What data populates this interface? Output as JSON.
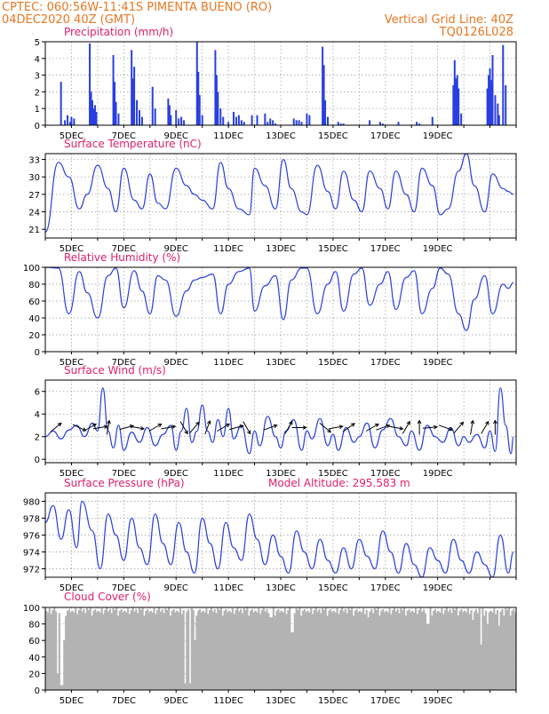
{
  "header": {
    "left_line1": "CPTEC:   060:56W-11:41S   PIMENTA BUENO (RO)",
    "left_line2": "04DEC2020 40Z (GMT)",
    "right_line1": "Vertical Grid Line: 40Z",
    "right_line2": "TQ0126L028"
  },
  "x_tick_labels": [
    "5DEC",
    "7DEC",
    "9DEC",
    "11DEC",
    "13DEC",
    "15DEC",
    "17DEC",
    "19DEC"
  ],
  "colors": {
    "header": "#e87722",
    "title": "#e0206a",
    "line": "#2a3fe0",
    "bar": "#2a3fe0",
    "cloud": "#b3b3b3"
  },
  "chart_data": [
    {
      "type": "bar",
      "title": "Precipitation (mm/h)",
      "ylim": [
        0,
        5
      ],
      "yticks": [
        "0",
        "1",
        "2",
        "3",
        "4",
        "5"
      ],
      "x_units": "days since 04DEC2020 00Z",
      "x": [
        0.6,
        0.75,
        0.85,
        0.95,
        1.0,
        1.1,
        1.7,
        1.75,
        1.8,
        1.85,
        1.9,
        1.95,
        2.6,
        2.65,
        2.7,
        2.8,
        3.3,
        3.35,
        3.4,
        3.5,
        3.6,
        3.7,
        4.1,
        4.2,
        4.7,
        4.75,
        4.8,
        5.0,
        5.1,
        5.2,
        5.3,
        5.8,
        5.85,
        5.9,
        6.0,
        6.5,
        6.55,
        6.6,
        6.7,
        6.8,
        7.0,
        7.2,
        7.3,
        7.4,
        7.5,
        7.6,
        7.9,
        8.1,
        8.4,
        8.5,
        8.6,
        8.7,
        8.8,
        9.5,
        9.6,
        9.7,
        9.8,
        10.0,
        10.1,
        10.6,
        10.65,
        10.7,
        10.8,
        11.2,
        11.3,
        11.4,
        12.4,
        12.8,
        12.9,
        13.5,
        14.2,
        14.3,
        14.8,
        15.6,
        15.65,
        15.7,
        15.75,
        15.8,
        15.9,
        16.9,
        16.95,
        17.0,
        17.05,
        17.1,
        17.2,
        17.3,
        17.35,
        17.5,
        17.6
      ],
      "values": [
        2.6,
        0.3,
        0.6,
        0.2,
        0.5,
        0.4,
        4.9,
        2.0,
        1.5,
        1.0,
        1.2,
        0.8,
        4.2,
        2.6,
        1.4,
        0.7,
        4.5,
        2.8,
        3.5,
        1.5,
        0.9,
        0.5,
        2.3,
        1.0,
        1.6,
        1.2,
        0.6,
        0.9,
        0.4,
        0.5,
        0.3,
        5.0,
        3.2,
        1.8,
        0.6,
        4.5,
        3.0,
        2.0,
        1.0,
        0.5,
        0.2,
        0.8,
        0.5,
        0.6,
        0.3,
        0.2,
        0.6,
        0.6,
        0.7,
        0.2,
        0.4,
        0.3,
        0.1,
        0.4,
        0.3,
        0.3,
        0.2,
        0.7,
        0.6,
        4.7,
        3.6,
        1.5,
        0.5,
        0.2,
        0.1,
        0.1,
        0.3,
        0.2,
        0.1,
        0.2,
        0.2,
        0.1,
        0.5,
        2.4,
        3.9,
        2.8,
        3.0,
        2.2,
        0.7,
        2.2,
        3.0,
        3.4,
        2.7,
        4.2,
        1.8,
        1.3,
        0.6,
        4.8,
        2.4
      ]
    },
    {
      "type": "line",
      "title": "Surface Temperature (nC)",
      "ylim": [
        19.5,
        34
      ],
      "yticks": [
        "21",
        "24",
        "27",
        "30",
        "33"
      ],
      "x_units": "days since 04DEC2020 00Z",
      "x": [
        0.0,
        0.5,
        0.9,
        1.3,
        1.6,
        2.0,
        2.4,
        2.7,
        3.0,
        3.4,
        3.7,
        4.0,
        4.3,
        4.6,
        5.0,
        5.4,
        5.7,
        6.0,
        6.4,
        6.7,
        7.0,
        7.4,
        7.8,
        8.0,
        8.4,
        8.8,
        9.1,
        9.4,
        9.8,
        10.0,
        10.4,
        10.8,
        11.1,
        11.4,
        11.8,
        12.1,
        12.4,
        12.8,
        13.1,
        13.4,
        13.8,
        14.1,
        14.4,
        14.8,
        15.1,
        15.4,
        15.8,
        16.1,
        16.4,
        16.8,
        17.1,
        17.5,
        17.7,
        17.9
      ],
      "values": [
        20.5,
        32.5,
        30.0,
        24.5,
        27.0,
        32.0,
        28.0,
        24.0,
        31.5,
        26.0,
        24.5,
        30.5,
        25.5,
        24.5,
        31.5,
        28.5,
        27.0,
        26.0,
        24.5,
        32.5,
        28.0,
        24.5,
        23.5,
        31.5,
        28.5,
        24.5,
        33.0,
        28.0,
        24.0,
        23.5,
        32.0,
        27.5,
        24.5,
        31.0,
        26.0,
        24.0,
        31.0,
        28.0,
        24.5,
        31.0,
        27.0,
        24.0,
        31.5,
        28.5,
        23.5,
        24.5,
        31.0,
        34.0,
        28.5,
        24.0,
        30.5,
        28.0,
        27.5,
        27.0
      ]
    },
    {
      "type": "line",
      "title": "Relative Humidity (%)",
      "ylim": [
        0,
        100
      ],
      "yticks": [
        "0",
        "20",
        "40",
        "60",
        "80",
        "100"
      ],
      "x_units": "days since 04DEC2020 00Z",
      "x": [
        0.0,
        0.5,
        0.9,
        1.3,
        1.6,
        2.0,
        2.4,
        2.7,
        3.0,
        3.4,
        3.7,
        4.0,
        4.3,
        4.6,
        5.0,
        5.4,
        5.7,
        6.0,
        6.4,
        6.7,
        7.0,
        7.4,
        7.8,
        8.0,
        8.4,
        8.8,
        9.1,
        9.4,
        9.8,
        10.0,
        10.4,
        10.8,
        11.1,
        11.4,
        11.8,
        12.1,
        12.4,
        12.8,
        13.1,
        13.4,
        13.8,
        14.1,
        14.4,
        14.8,
        15.1,
        15.4,
        15.8,
        16.1,
        16.4,
        16.8,
        17.1,
        17.5,
        17.7,
        17.9
      ],
      "values": [
        100,
        99,
        45,
        95,
        70,
        40,
        90,
        99,
        52,
        96,
        72,
        45,
        90,
        85,
        42,
        72,
        85,
        88,
        92,
        45,
        80,
        95,
        99,
        48,
        78,
        90,
        38,
        85,
        99,
        99,
        45,
        80,
        95,
        48,
        92,
        99,
        55,
        80,
        95,
        50,
        88,
        96,
        45,
        75,
        99,
        92,
        45,
        25,
        62,
        90,
        45,
        80,
        75,
        82
      ]
    },
    {
      "type": "line",
      "title": "Surface Wind (m/s)",
      "ylim": [
        -0.3,
        7.0
      ],
      "yticks": [
        "0",
        "2",
        "4",
        "6"
      ],
      "x_units": "days since 04DEC2020 00Z",
      "x": [
        0.0,
        0.3,
        0.6,
        0.9,
        1.2,
        1.5,
        1.8,
        2.0,
        2.2,
        2.4,
        2.6,
        2.8,
        3.0,
        3.3,
        3.6,
        3.9,
        4.2,
        4.5,
        4.8,
        5.0,
        5.2,
        5.4,
        5.6,
        5.8,
        6.0,
        6.2,
        6.4,
        6.6,
        6.8,
        7.0,
        7.2,
        7.5,
        7.8,
        8.0,
        8.2,
        8.5,
        8.8,
        9.0,
        9.2,
        9.5,
        9.8,
        10.0,
        10.2,
        10.5,
        10.8,
        11.0,
        11.2,
        11.5,
        11.8,
        12.0,
        12.3,
        12.6,
        12.9,
        13.2,
        13.5,
        13.8,
        14.0,
        14.3,
        14.6,
        14.9,
        15.2,
        15.5,
        15.8,
        16.0,
        16.2,
        16.5,
        16.8,
        17.0,
        17.2,
        17.4,
        17.6,
        17.8,
        17.9
      ],
      "values": [
        2.0,
        2.5,
        1.8,
        2.6,
        3.0,
        2.0,
        3.2,
        2.5,
        6.3,
        2.5,
        1.0,
        3.0,
        0.8,
        2.4,
        1.5,
        2.8,
        1.2,
        2.2,
        3.0,
        0.8,
        2.5,
        4.5,
        1.5,
        2.5,
        4.8,
        2.5,
        1.5,
        3.5,
        2.0,
        4.5,
        1.8,
        3.0,
        0.5,
        2.5,
        1.2,
        3.8,
        2.0,
        1.0,
        2.5,
        3.5,
        0.8,
        2.5,
        1.8,
        3.6,
        1.2,
        2.2,
        0.8,
        2.8,
        1.5,
        2.0,
        3.2,
        1.0,
        2.6,
        3.6,
        2.0,
        1.2,
        2.5,
        0.8,
        3.0,
        2.0,
        1.5,
        2.8,
        1.2,
        2.0,
        1.5,
        2.2,
        1.0,
        2.5,
        0.7,
        6.3,
        3.0,
        0.5,
        2.0
      ],
      "wind_arrows": {
        "x": [
          0.4,
          1.3,
          1.7,
          2.1,
          2.4,
          3.1,
          3.5,
          4.2,
          4.7,
          5.3,
          5.7,
          6.2,
          6.8,
          7.3,
          7.7,
          8.6,
          9.3,
          9.7,
          10.7,
          11.1,
          11.6,
          12.5,
          12.9,
          13.4,
          13.8,
          14.3,
          14.7,
          15.3,
          15.8,
          16.3,
          16.8,
          17.2
        ],
        "angle_deg": [
          40,
          -25,
          30,
          10,
          80,
          15,
          -10,
          30,
          10,
          -60,
          50,
          70,
          30,
          15,
          -60,
          20,
          60,
          0,
          -40,
          10,
          35,
          30,
          20,
          -10,
          60,
          90,
          5,
          -20,
          50,
          80,
          60,
          90
        ]
      }
    },
    {
      "type": "line",
      "title": "Surface Pressure (hPa)",
      "annotation": "Model Altitude: 295.583 m",
      "ylim": [
        971,
        981
      ],
      "yticks": [
        "972",
        "974",
        "976",
        "978",
        "980"
      ],
      "x_units": "days since 04DEC2020 00Z",
      "x": [
        0.0,
        0.3,
        0.6,
        0.9,
        1.2,
        1.4,
        1.8,
        2.1,
        2.4,
        2.7,
        3.0,
        3.3,
        3.6,
        3.9,
        4.2,
        4.5,
        4.8,
        5.1,
        5.4,
        5.7,
        6.0,
        6.3,
        6.6,
        6.9,
        7.2,
        7.5,
        7.8,
        8.1,
        8.4,
        8.7,
        9.0,
        9.3,
        9.6,
        9.9,
        10.2,
        10.5,
        10.8,
        11.1,
        11.4,
        11.7,
        12.0,
        12.3,
        12.6,
        12.9,
        13.2,
        13.5,
        13.8,
        14.1,
        14.4,
        14.7,
        15.0,
        15.3,
        15.6,
        15.9,
        16.2,
        16.5,
        16.8,
        17.1,
        17.4,
        17.7,
        17.9
      ],
      "values": [
        977.5,
        979.5,
        975.5,
        979.0,
        974.5,
        980.0,
        976.5,
        972.0,
        978.5,
        976.0,
        973.0,
        978.0,
        974.5,
        972.5,
        978.5,
        975.0,
        972.5,
        977.5,
        974.0,
        971.5,
        978.0,
        975.0,
        972.0,
        977.5,
        974.5,
        973.0,
        978.5,
        975.5,
        972.5,
        976.0,
        973.5,
        971.5,
        976.5,
        974.0,
        972.0,
        975.5,
        973.0,
        971.5,
        974.5,
        972.0,
        975.5,
        973.5,
        972.0,
        976.5,
        974.0,
        971.5,
        975.0,
        972.5,
        971.0,
        974.5,
        973.0,
        971.5,
        975.5,
        973.0,
        971.5,
        974.0,
        972.5,
        971.0,
        976.0,
        971.5,
        974.0
      ]
    },
    {
      "type": "bar",
      "title": "Cloud Cover (%)",
      "ylim": [
        0,
        100
      ],
      "yticks": [
        "0",
        "20",
        "40",
        "60",
        "80",
        "100"
      ],
      "fill_color": "#b3b3b3",
      "x_units": "days since 04DEC2020 00Z",
      "x_step": 0.0625,
      "values_pattern": [
        96,
        94,
        99,
        92,
        97,
        100,
        95,
        98,
        93,
        99,
        97,
        100,
        90,
        96,
        98,
        94
      ],
      "dips": [
        [
          0.45,
          20
        ],
        [
          0.6,
          6
        ],
        [
          0.7,
          60
        ],
        [
          5.3,
          8
        ],
        [
          5.5,
          8
        ],
        [
          5.7,
          60
        ],
        [
          8.6,
          88
        ],
        [
          9.4,
          70
        ],
        [
          12.3,
          88
        ],
        [
          14.6,
          80
        ],
        [
          16.3,
          85
        ],
        [
          16.6,
          55
        ],
        [
          16.9,
          80
        ],
        [
          17.3,
          78
        ],
        [
          17.5,
          90
        ]
      ]
    }
  ]
}
